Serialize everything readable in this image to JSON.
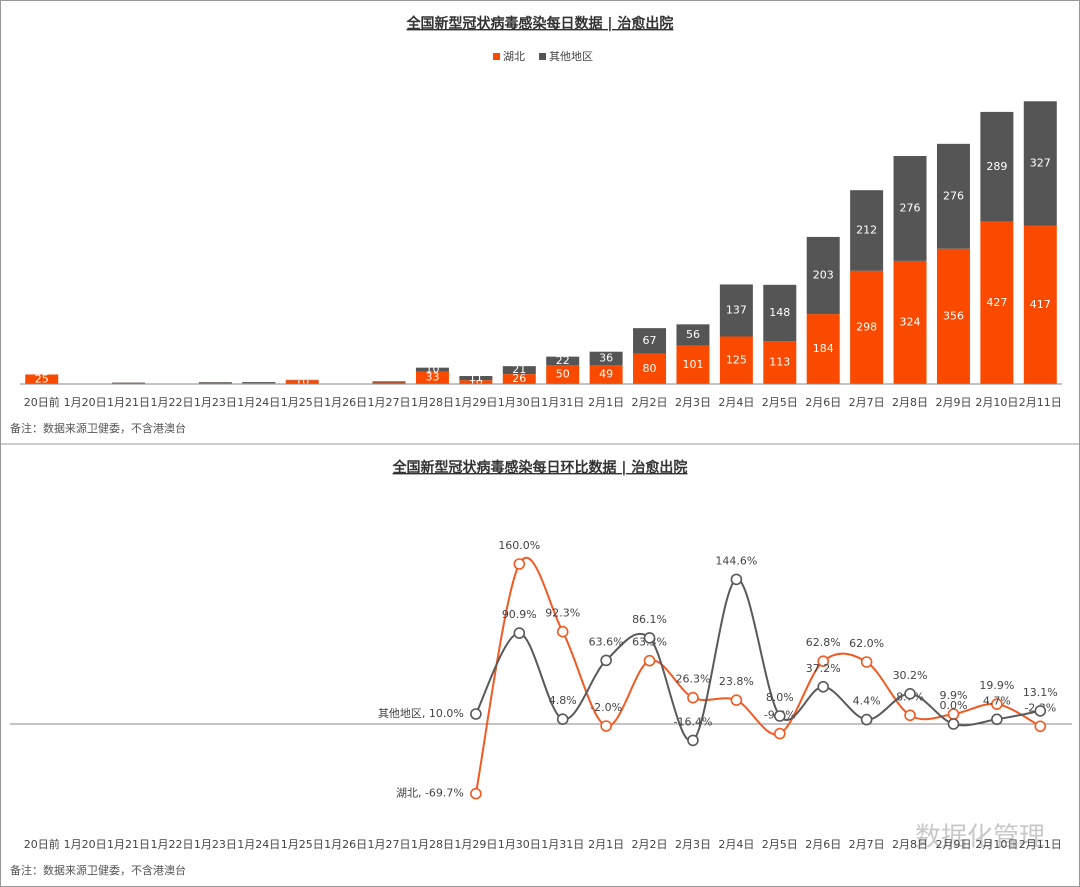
{
  "chart_data": [
    {
      "type": "bar",
      "stacked": true,
      "title": "全国新型冠状病毒感染每日数据 | 治愈出院",
      "categories": [
        "20日前",
        "1月20日",
        "1月21日",
        "1月22日",
        "1月23日",
        "1月24日",
        "1月25日",
        "1月26日",
        "1月27日",
        "1月28日",
        "1月29日",
        "1月30日",
        "1月31日",
        "2月1日",
        "2月2日",
        "2月3日",
        "2月4日",
        "2月5日",
        "2月6日",
        "2月7日",
        "2月8日",
        "2月9日",
        "2月10日",
        "2月11日"
      ],
      "series": [
        {
          "name": "湖北",
          "color": "#fa4a00",
          "values": [
            25,
            0,
            3,
            0,
            3,
            2,
            10,
            0,
            4,
            33,
            10,
            26,
            50,
            49,
            80,
            101,
            125,
            113,
            184,
            298,
            324,
            356,
            427,
            417
          ]
        },
        {
          "name": "其他地区",
          "color": "#555555",
          "values": [
            0,
            0,
            1,
            1,
            2,
            3,
            1,
            1,
            3,
            10,
            11,
            21,
            22,
            36,
            67,
            56,
            137,
            148,
            203,
            212,
            276,
            276,
            289,
            327
          ]
        }
      ],
      "ylim": [
        0,
        800
      ],
      "legend": "top",
      "note": "备注：数据来源卫健委，不含港澳台"
    },
    {
      "type": "line",
      "title": "全国新型冠状病毒感染每日环比数据 | 治愈出院",
      "categories": [
        "20日前",
        "1月20日",
        "1月21日",
        "1月22日",
        "1月23日",
        "1月24日",
        "1月25日",
        "1月26日",
        "1月27日",
        "1月28日",
        "1月29日",
        "1月30日",
        "1月31日",
        "2月1日",
        "2月2日",
        "2月3日",
        "2月4日",
        "2月5日",
        "2月6日",
        "2月7日",
        "2月8日",
        "2月9日",
        "2月10日",
        "2月11日"
      ],
      "series": [
        {
          "name": "湖北",
          "color": "#f15a22",
          "values": [
            null,
            null,
            null,
            null,
            null,
            null,
            null,
            null,
            null,
            null,
            -69.7,
            160.0,
            92.3,
            -2.0,
            63.3,
            26.3,
            23.8,
            -9.6,
            62.8,
            62.0,
            8.7,
            9.9,
            19.9,
            -2.3
          ],
          "value_labels": [
            null,
            null,
            null,
            null,
            null,
            null,
            null,
            null,
            null,
            null,
            "湖北, -69.7%",
            "160.0%",
            "92.3%",
            "-2.0%",
            "63.3%",
            "26.3%",
            "23.8%",
            "-9.6%",
            "62.8%",
            "62.0%",
            "8.7%",
            "9.9%",
            "19.9%",
            "-2.3%"
          ]
        },
        {
          "name": "其他地区",
          "color": "#595959",
          "values": [
            null,
            null,
            null,
            null,
            null,
            null,
            null,
            null,
            null,
            null,
            10.0,
            90.9,
            4.8,
            63.6,
            86.1,
            -16.4,
            144.6,
            8.0,
            37.2,
            4.4,
            30.2,
            0.0,
            4.7,
            13.1
          ],
          "value_labels": [
            null,
            null,
            null,
            null,
            null,
            null,
            null,
            null,
            null,
            null,
            "其他地区, 10.0%",
            "90.9%",
            "4.8%",
            "63.6%",
            "86.1%",
            "-16.4%",
            "144.6%",
            "8.0%",
            "37.2%",
            "4.4%",
            "30.2%",
            "0.0%",
            "4.7%",
            "13.1%"
          ]
        }
      ],
      "ylim": [
        -100,
        220
      ],
      "note": "备注：数据来源卫健委，不含港澳台"
    }
  ],
  "watermark": "数据化管理"
}
